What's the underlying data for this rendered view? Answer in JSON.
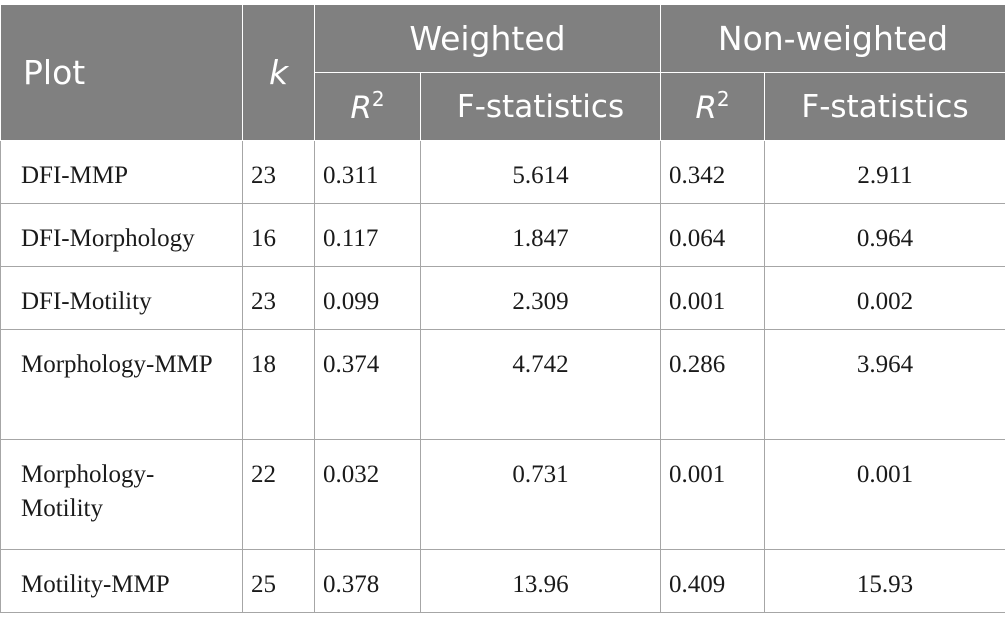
{
  "headers": {
    "plot": "Plot",
    "k": "k",
    "weighted": "Weighted",
    "non_weighted": "Non-weighted",
    "r2_base": "R",
    "r2_sup": "2",
    "fstat": "F-statistics"
  },
  "rows": [
    {
      "plot": "DFI-MMP",
      "k": "23",
      "w_r2": "0.311",
      "w_f": "5.614",
      "nw_r2": "0.342",
      "nw_f": "2.911"
    },
    {
      "plot": "DFI-Morphology",
      "k": "16",
      "w_r2": "0.117",
      "w_f": "1.847",
      "nw_r2": "0.064",
      "nw_f": "0.964"
    },
    {
      "plot": "DFI-Motility",
      "k": "23",
      "w_r2": "0.099",
      "w_f": "2.309",
      "nw_r2": "0.001",
      "nw_f": "0.002"
    },
    {
      "plot": "Morphology-MMP",
      "k": "18",
      "w_r2": "0.374",
      "w_f": "4.742",
      "nw_r2": "0.286",
      "nw_f": "3.964"
    },
    {
      "plot": "Morphology-Motility",
      "k": "22",
      "w_r2": "0.032",
      "w_f": "0.731",
      "nw_r2": "0.001",
      "nw_f": "0.001"
    },
    {
      "plot": "Motility-MMP",
      "k": "25",
      "w_r2": "0.378",
      "w_f": "13.96",
      "nw_r2": "0.409",
      "nw_f": "15.93"
    }
  ]
}
